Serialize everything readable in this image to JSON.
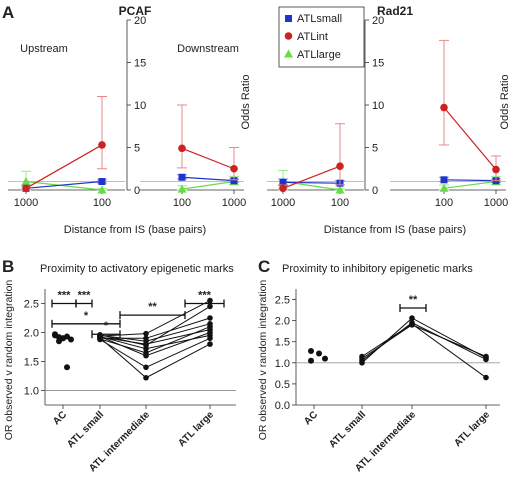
{
  "panel_letters": {
    "A": "A",
    "B": "B",
    "C": "C"
  },
  "colors": {
    "small": "#2233cc",
    "int": "#cc2222",
    "int_bar": "#e88888",
    "large": "#66dd44",
    "large_bar": "#99ee88",
    "small_bar": "#8899ee",
    "black": "#111111",
    "ref": "#999999"
  },
  "panelA": {
    "xlabel": "Distance from IS (base pairs)",
    "ylabel": "Odds Ratio",
    "legend": [
      "ATLsmall",
      "ATLint",
      "ATLlarge"
    ],
    "yticks": [
      "0",
      "5",
      "10",
      "15",
      "20"
    ],
    "charts": [
      {
        "title": "PCAF",
        "subtitle": "Upstream",
        "xticks": [
          "1000",
          "100"
        ],
        "series": {
          "small": [
            {
              "y": 0.2,
              "lo": 0.0,
              "hi": 0.5
            },
            {
              "y": 1.0,
              "lo": 0.8,
              "hi": 1.2
            }
          ],
          "int": [
            {
              "y": 0.2,
              "lo": 0.0,
              "hi": 0.5
            },
            {
              "y": 5.3,
              "lo": 2.5,
              "hi": 11.0
            }
          ],
          "large": [
            {
              "y": 1.0,
              "lo": 0.2,
              "hi": 2.2
            },
            {
              "y": 0.0,
              "lo": 0.0,
              "hi": 0.2
            }
          ]
        }
      },
      {
        "title": "",
        "subtitle": "Downstream",
        "xticks": [
          "100",
          "1000"
        ],
        "series": {
          "small": [
            {
              "y": 1.5,
              "lo": 1.3,
              "hi": 1.8
            },
            {
              "y": 1.1,
              "lo": 0.9,
              "hi": 1.3
            }
          ],
          "int": [
            {
              "y": 4.9,
              "lo": 2.6,
              "hi": 10.0
            },
            {
              "y": 2.5,
              "lo": 1.2,
              "hi": 5.0
            }
          ],
          "large": [
            {
              "y": 0.1,
              "lo": 0.0,
              "hi": 0.5
            },
            {
              "y": 1.0,
              "lo": 0.6,
              "hi": 1.6
            }
          ]
        }
      },
      {
        "title": "Rad21",
        "subtitle": "",
        "xticks": [
          "1000",
          "100"
        ],
        "series": {
          "small": [
            {
              "y": 0.9,
              "lo": 0.5,
              "hi": 1.3
            },
            {
              "y": 0.8,
              "lo": 0.6,
              "hi": 1.1
            }
          ],
          "int": [
            {
              "y": 0.2,
              "lo": 0.0,
              "hi": 0.6
            },
            {
              "y": 2.8,
              "lo": 0.6,
              "hi": 7.8
            }
          ],
          "large": [
            {
              "y": 1.0,
              "lo": 0.2,
              "hi": 2.3
            },
            {
              "y": 0.0,
              "lo": 0.0,
              "hi": 0.2
            }
          ]
        }
      },
      {
        "title": "",
        "subtitle": "",
        "xticks": [
          "100",
          "1000"
        ],
        "series": {
          "small": [
            {
              "y": 1.2,
              "lo": 1.0,
              "hi": 1.5
            },
            {
              "y": 1.1,
              "lo": 0.9,
              "hi": 1.3
            }
          ],
          "int": [
            {
              "y": 9.7,
              "lo": 5.3,
              "hi": 17.6
            },
            {
              "y": 2.4,
              "lo": 1.1,
              "hi": 4.0
            }
          ],
          "large": [
            {
              "y": 0.2,
              "lo": 0.0,
              "hi": 0.6
            },
            {
              "y": 1.0,
              "lo": 0.6,
              "hi": 1.6
            }
          ]
        }
      }
    ]
  },
  "panelB": {
    "title": "Proximity to activatory epigenetic marks",
    "ylabel": "OR observed  v random integration",
    "yticks": [
      "1.0",
      "1.5",
      "2.0",
      "2.5"
    ],
    "categories": [
      "AC",
      "ATL small",
      "ATL intermediate",
      "ATL large"
    ],
    "ac_values": [
      1.95,
      1.92,
      1.9,
      1.93,
      1.88,
      1.97,
      1.85,
      1.9,
      1.4
    ],
    "lines": [
      [
        1.93,
        1.72,
        1.95
      ],
      [
        1.92,
        1.8,
        2.05
      ],
      [
        1.95,
        1.85,
        2.15
      ],
      [
        1.9,
        1.9,
        2.25
      ],
      [
        1.93,
        1.6,
        2.0
      ],
      [
        1.88,
        1.4,
        1.9
      ],
      [
        1.91,
        1.22,
        1.8
      ],
      [
        1.89,
        1.65,
        2.1
      ],
      [
        1.94,
        1.98,
        2.55
      ],
      [
        1.96,
        1.78,
        2.45
      ]
    ],
    "significance": [
      {
        "from": 0,
        "to": 1,
        "y": 2.5,
        "label": "***"
      },
      {
        "from": 1,
        "to": 2,
        "y": 2.5,
        "label": "***"
      },
      {
        "from": 0,
        "to": 3,
        "y": 2.15,
        "label": "*"
      },
      {
        "from": 2,
        "to": 3,
        "y": 1.97,
        "label": "*"
      },
      {
        "from": 3,
        "to": 4,
        "y": 2.3,
        "label": "**"
      },
      {
        "from": 4,
        "to": 5,
        "y": 2.5,
        "label": "***"
      }
    ]
  },
  "panelC": {
    "title": "Proximity to inhibitory epigenetic marks",
    "ylabel": "OR observed  v random integration",
    "yticks": [
      "0.0",
      "0.5",
      "1.0",
      "1.5",
      "2.0",
      "2.5"
    ],
    "categories": [
      "AC",
      "ATL small",
      "ATL intermediate",
      "ATL large"
    ],
    "ac_values": [
      1.28,
      1.22,
      1.05,
      1.1
    ],
    "lines": [
      [
        1.0,
        2.06,
        1.12
      ],
      [
        1.05,
        1.95,
        1.08
      ],
      [
        1.1,
        1.9,
        1.15
      ],
      [
        1.15,
        1.92,
        0.65
      ]
    ],
    "significance": [
      {
        "y": 2.3,
        "label": "**"
      }
    ]
  }
}
